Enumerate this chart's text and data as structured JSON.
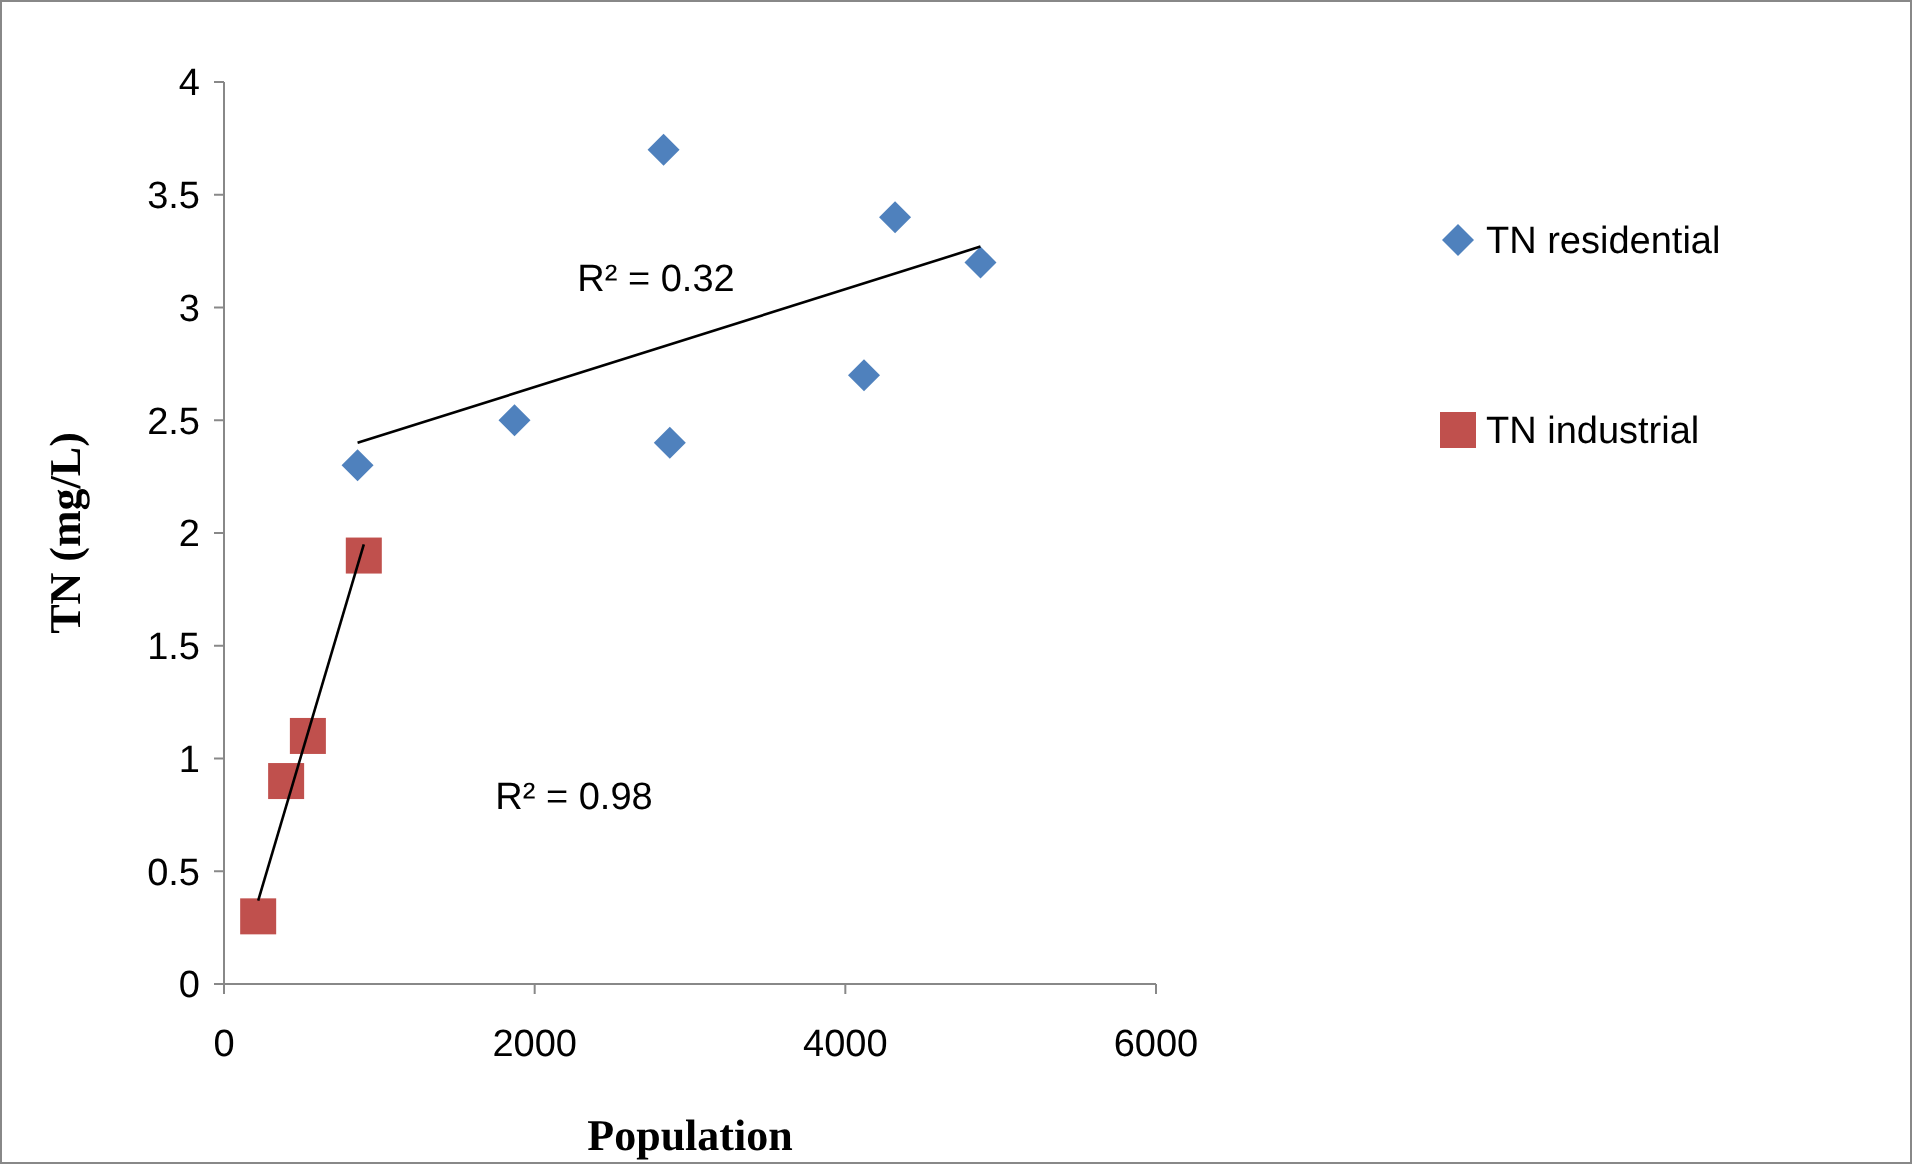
{
  "chart_data": {
    "type": "scatter",
    "xlabel": "Population",
    "ylabel": "TN (mg/L)",
    "xlim": [
      0,
      6000
    ],
    "ylim": [
      0,
      4
    ],
    "xticks": [
      0,
      2000,
      4000,
      6000
    ],
    "yticks": [
      0,
      0.5,
      1,
      1.5,
      2,
      2.5,
      3,
      3.5,
      4
    ],
    "grid": false,
    "legend": "right",
    "series": [
      {
        "name": "TN residential",
        "marker": "diamond",
        "color": "#4f81bd",
        "x": [
          860,
          1870,
          2830,
          2870,
          4120,
          4320,
          4870
        ],
        "values": [
          2.3,
          2.5,
          3.7,
          2.4,
          2.7,
          3.4,
          3.2
        ]
      },
      {
        "name": "TN industrial",
        "marker": "square",
        "color": "#c0504d",
        "x": [
          220,
          400,
          540,
          900
        ],
        "values": [
          0.3,
          0.9,
          1.1,
          1.9
        ]
      },
      {
        "type": "line",
        "marker": "none",
        "color": "#000000",
        "x": [
          860,
          4870
        ],
        "values": [
          2.4,
          3.27
        ]
      },
      {
        "type": "line",
        "marker": "none",
        "color": "#000000",
        "x": [
          220,
          900
        ],
        "values": [
          0.37,
          1.95
        ]
      }
    ],
    "annotations": [
      "R² = 0.32",
      "R² = 0.98"
    ]
  }
}
